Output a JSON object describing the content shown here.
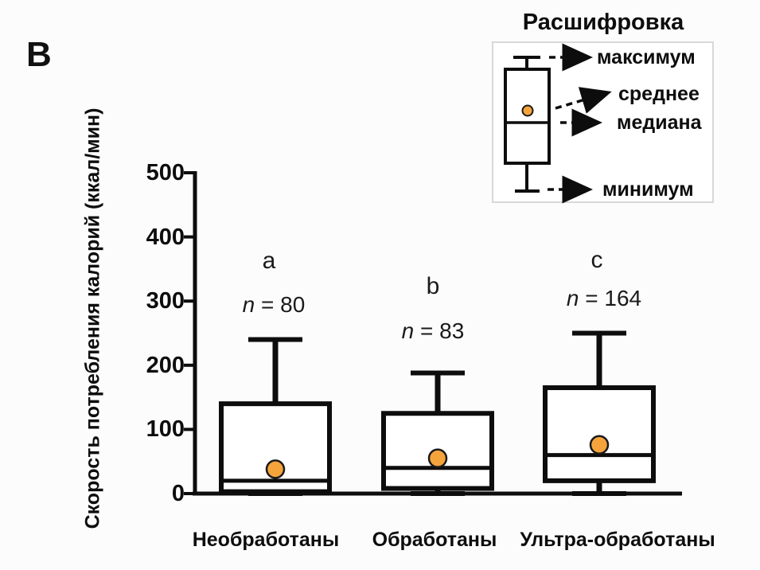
{
  "figure": {
    "panel_letter": "В"
  },
  "legend": {
    "title": "Расшифровка",
    "labels": {
      "max": "максимум",
      "mean": "среднее",
      "median": "медиана",
      "min": "минимум"
    }
  },
  "chart_data": {
    "type": "boxplot",
    "title": "",
    "ylabel": "Скорость потребления калорий (ккал/мин)",
    "xlabel": "",
    "ylim": [
      0,
      500
    ],
    "yticks": [
      0,
      100,
      200,
      300,
      400,
      500
    ],
    "grid": false,
    "legend_position": "top-right",
    "categories": [
      "Необработаны",
      "Обработаны",
      "Ультра-обработаны"
    ],
    "series": [
      {
        "category": "Необработаны",
        "letter": "a",
        "n_label": "n = 80",
        "n": 80,
        "min": 0,
        "q1": 3,
        "median": 20,
        "q3": 140,
        "max": 240,
        "mean": 38
      },
      {
        "category": "Обработаны",
        "letter": "b",
        "n_label": "n = 83",
        "n": 83,
        "min": 0,
        "q1": 8,
        "median": 40,
        "q3": 125,
        "max": 188,
        "mean": 55
      },
      {
        "category": "Ультра-обработаны",
        "letter": "c",
        "n_label": "n = 164",
        "n": 164,
        "min": 0,
        "q1": 20,
        "median": 60,
        "q3": 165,
        "max": 250,
        "mean": 76
      }
    ],
    "colors": {
      "box_stroke": "#0d0d0d",
      "mean_dot_fill": "#F5A43C",
      "mean_dot_stroke": "#1a1a1a"
    }
  }
}
